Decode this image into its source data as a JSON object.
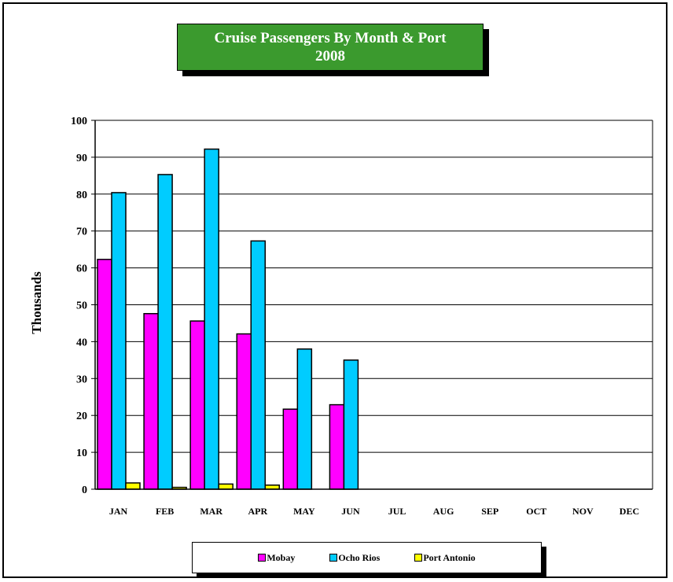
{
  "chart_data": {
    "type": "bar",
    "title": "Cruise Passengers By Month & Port",
    "subtitle": "2008",
    "xlabel": "",
    "ylabel": "Thousands",
    "ylim": [
      0,
      100
    ],
    "yticks": [
      0,
      10,
      20,
      30,
      40,
      50,
      60,
      70,
      80,
      90,
      100
    ],
    "grid": true,
    "legend_position": "bottom",
    "categories": [
      "JAN",
      "FEB",
      "MAR",
      "APR",
      "MAY",
      "JUN",
      "JUL",
      "AUG",
      "SEP",
      "OCT",
      "NOV",
      "DEC"
    ],
    "series": [
      {
        "name": "Mobay",
        "color": "#ff00ff",
        "values": [
          62.3,
          47.6,
          45.6,
          42.1,
          21.7,
          22.9,
          null,
          null,
          null,
          null,
          null,
          null
        ]
      },
      {
        "name": "Ocho Rios",
        "color": "#00ccff",
        "values": [
          80.4,
          85.3,
          92.2,
          67.3,
          38.0,
          35.0,
          null,
          null,
          null,
          null,
          null,
          null
        ]
      },
      {
        "name": "Port Antonio",
        "color": "#ffff00",
        "values": [
          1.7,
          0.5,
          1.4,
          1.1,
          null,
          null,
          null,
          null,
          null,
          null,
          null,
          null
        ]
      }
    ]
  }
}
